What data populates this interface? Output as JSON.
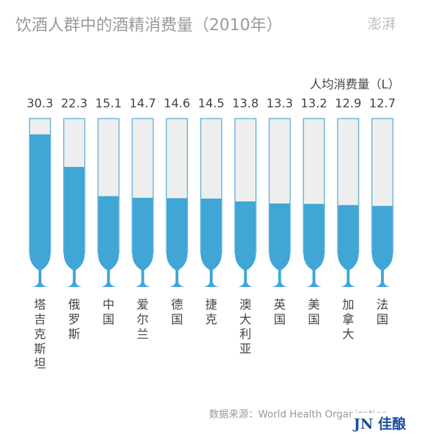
{
  "title": "饮酒人群中的酒精消费量（2010年）",
  "logo": "澎湃",
  "source": "数据来源：World Health Organization",
  "brand": "JN 佳酿网",
  "colors": {
    "fill": "#3fa6d6",
    "empty": "#eeeeee",
    "border": "#6cb6dc"
  },
  "chart_data": {
    "type": "bar",
    "title": "饮酒人群中的酒精消费量（2010年）",
    "ylabel": "人均消费量（L）",
    "categories": [
      "塔吉克斯坦",
      "俄罗斯",
      "中国",
      "爱尔兰",
      "德国",
      "捷克",
      "澳大利亚",
      "英国",
      "美国",
      "加拿大",
      "法国"
    ],
    "values": [
      30.3,
      22.3,
      15.1,
      14.7,
      14.6,
      14.5,
      13.8,
      13.3,
      13.2,
      12.9,
      12.7
    ],
    "value_labels": [
      "30.3",
      "22.3",
      "15.1",
      "14.7",
      "14.6",
      "14.5",
      "13.8",
      "13.3",
      "13.2",
      "12.9",
      "12.7"
    ],
    "ylim": [
      0,
      34.2
    ]
  }
}
